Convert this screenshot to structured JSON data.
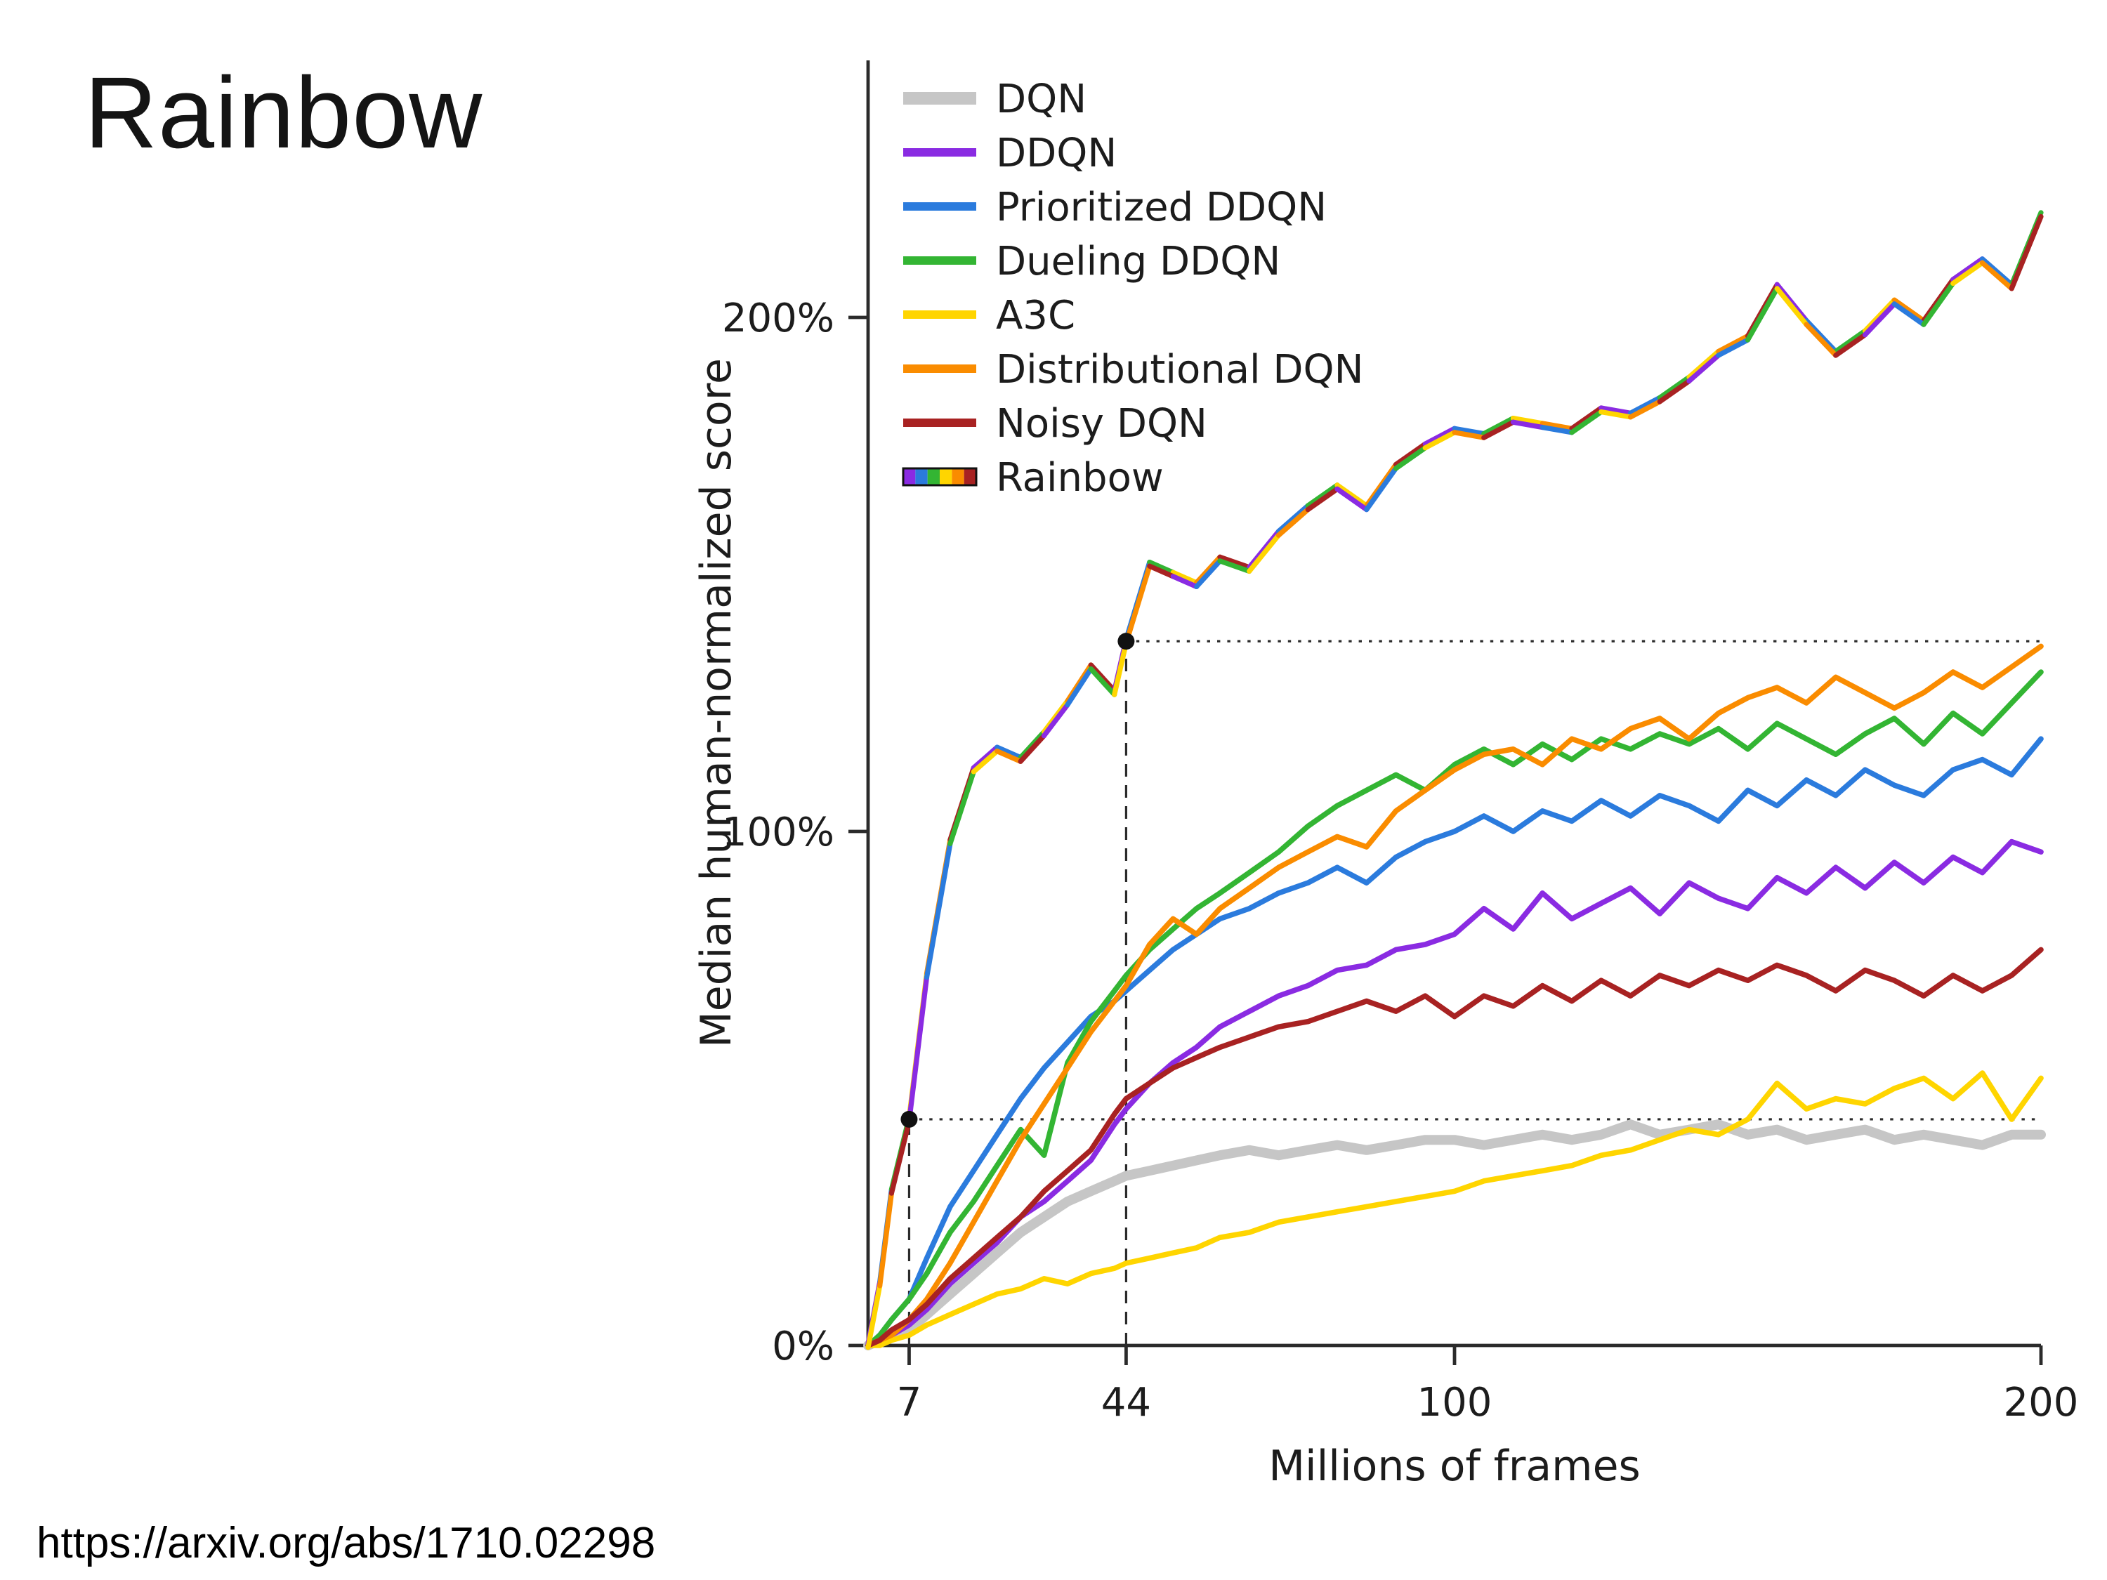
{
  "slide": {
    "title": "Rainbow",
    "source_link": "https://arxiv.org/abs/1710.02298"
  },
  "chart_data": {
    "type": "line",
    "title": "",
    "xlabel": "Millions of frames",
    "ylabel": "Median human-normalized score",
    "xlim": [
      0,
      200
    ],
    "ylim_percent": [
      0,
      250
    ],
    "grid": false,
    "legend_position": "top-left",
    "x_ticks": [
      {
        "v": 7,
        "label": "7"
      },
      {
        "v": 44,
        "label": "44"
      },
      {
        "v": 100,
        "label": "100"
      },
      {
        "v": 200,
        "label": "200"
      }
    ],
    "y_ticks": [
      {
        "v": 0,
        "label": "0%"
      },
      {
        "v": 100,
        "label": "100%"
      },
      {
        "v": 200,
        "label": "200%"
      }
    ],
    "x": [
      0,
      2,
      4,
      7,
      10,
      14,
      18,
      22,
      26,
      30,
      34,
      38,
      42,
      44,
      48,
      52,
      56,
      60,
      65,
      70,
      75,
      80,
      85,
      90,
      95,
      100,
      105,
      110,
      115,
      120,
      125,
      130,
      135,
      140,
      145,
      150,
      155,
      160,
      165,
      170,
      175,
      180,
      185,
      190,
      195,
      200
    ],
    "series": [
      {
        "name": "DQN",
        "color": "#c6c6c6",
        "width": 7,
        "values": [
          0,
          1,
          2,
          3,
          6,
          10,
          14,
          18,
          22,
          25,
          28,
          30,
          32,
          33,
          34,
          35,
          36,
          37,
          38,
          37,
          38,
          39,
          38,
          39,
          40,
          40,
          39,
          40,
          41,
          40,
          41,
          43,
          41,
          42,
          43,
          41,
          42,
          40,
          41,
          42,
          40,
          41,
          40,
          39,
          41,
          41
        ]
      },
      {
        "name": "DDQN",
        "color": "#8a2be2",
        "width": 3.8,
        "values": [
          0,
          1,
          2,
          4,
          7,
          12,
          16,
          20,
          25,
          28,
          32,
          36,
          43,
          46,
          51,
          55,
          58,
          62,
          65,
          68,
          70,
          73,
          74,
          77,
          78,
          80,
          85,
          81,
          88,
          83,
          86,
          89,
          84,
          90,
          87,
          85,
          91,
          88,
          93,
          89,
          94,
          90,
          95,
          92,
          98,
          96
        ]
      },
      {
        "name": "Prioritized DDQN",
        "color": "#2b7bdd",
        "width": 3.8,
        "values": [
          0,
          2,
          5,
          9,
          17,
          27,
          34,
          41,
          48,
          54,
          59,
          64,
          67,
          69,
          73,
          77,
          80,
          83,
          85,
          88,
          90,
          93,
          90,
          95,
          98,
          100,
          103,
          100,
          104,
          102,
          106,
          103,
          107,
          105,
          102,
          108,
          105,
          110,
          107,
          112,
          109,
          107,
          112,
          114,
          111,
          118
        ]
      },
      {
        "name": "Dueling DDQN",
        "color": "#33b533",
        "width": 3.8,
        "values": [
          0,
          2,
          5,
          9,
          14,
          22,
          28,
          35,
          42,
          37,
          55,
          63,
          69,
          72,
          77,
          81,
          85,
          88,
          92,
          96,
          101,
          105,
          108,
          111,
          108,
          113,
          116,
          113,
          117,
          114,
          118,
          116,
          119,
          117,
          120,
          116,
          121,
          118,
          115,
          119,
          122,
          117,
          123,
          119,
          125,
          131
        ]
      },
      {
        "name": "A3C",
        "color": "#ffd500",
        "width": 3.8,
        "values": [
          0,
          0,
          1,
          2,
          4,
          6,
          8,
          10,
          11,
          13,
          12,
          14,
          15,
          16,
          17,
          18,
          19,
          21,
          22,
          24,
          25,
          26,
          27,
          28,
          29,
          30,
          32,
          33,
          34,
          35,
          37,
          38,
          40,
          42,
          41,
          44,
          51,
          46,
          48,
          47,
          50,
          52,
          48,
          53,
          44,
          52
        ]
      },
      {
        "name": "Distributional DQN",
        "color": "#fa8c00",
        "width": 3.8,
        "values": [
          0,
          1,
          2,
          5,
          9,
          16,
          24,
          32,
          40,
          47,
          54,
          61,
          67,
          70,
          78,
          83,
          80,
          85,
          89,
          93,
          96,
          99,
          97,
          104,
          108,
          112,
          115,
          116,
          113,
          118,
          116,
          120,
          122,
          118,
          123,
          126,
          128,
          125,
          130,
          127,
          124,
          127,
          131,
          128,
          132,
          136
        ]
      },
      {
        "name": "Noisy DQN",
        "color": "#a82222",
        "width": 3.8,
        "values": [
          0,
          1,
          3,
          5,
          8,
          13,
          17,
          21,
          25,
          30,
          34,
          38,
          45,
          48,
          51,
          54,
          56,
          58,
          60,
          62,
          63,
          65,
          67,
          65,
          68,
          64,
          68,
          66,
          70,
          67,
          71,
          68,
          72,
          70,
          73,
          71,
          74,
          72,
          69,
          73,
          71,
          68,
          72,
          69,
          72,
          77
        ]
      },
      {
        "name": "Rainbow",
        "style": "rainbow",
        "width": 3.6,
        "palette": [
          "#8a2be2",
          "#2b7bdd",
          "#33b533",
          "#ffd500",
          "#fa8c00",
          "#a82222"
        ],
        "values": [
          0,
          12,
          30,
          44,
          72,
          98,
          112,
          116,
          114,
          119,
          125,
          132,
          127,
          137,
          152,
          150,
          148,
          153,
          151,
          158,
          163,
          167,
          163,
          171,
          175,
          178,
          177,
          180,
          179,
          178,
          182,
          181,
          184,
          188,
          193,
          196,
          206,
          199,
          193,
          197,
          203,
          199,
          207,
          211,
          206,
          220
        ]
      }
    ],
    "annotations": {
      "dashed_vlines": [
        {
          "x": 7,
          "y_top": 44
        },
        {
          "x": 44,
          "y_top": 137
        }
      ],
      "dotted_hlines": [
        {
          "y": 44,
          "x_start": 7,
          "x_end": 200
        },
        {
          "y": 137,
          "x_start": 44,
          "x_end": 200
        }
      ],
      "points": [
        {
          "x": 7,
          "y": 44
        },
        {
          "x": 44,
          "y": 137
        }
      ]
    }
  }
}
